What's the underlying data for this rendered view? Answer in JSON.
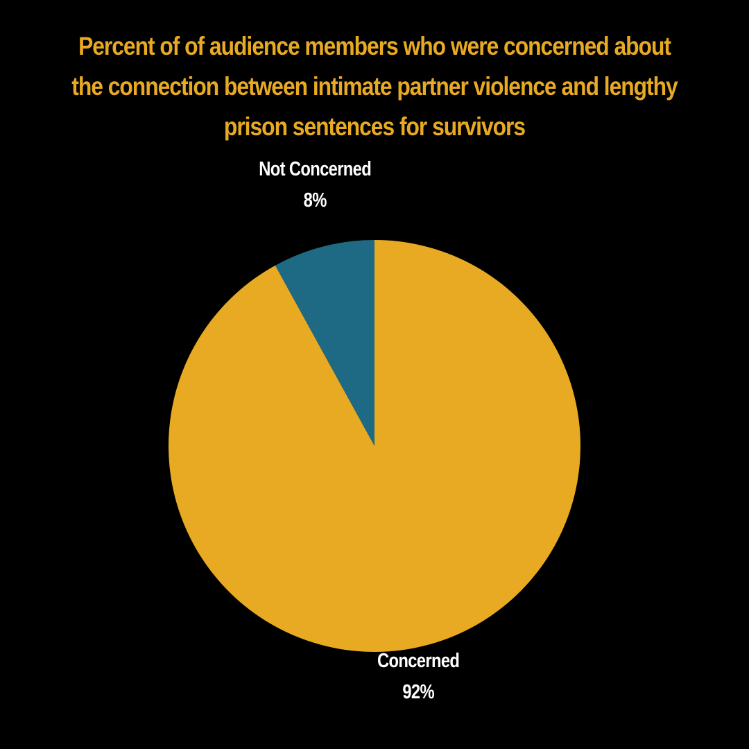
{
  "chart_data": {
    "type": "pie",
    "title": "Percent of of audience members who were concerned about the connection between intimate partner violence and lengthy prison sentences for survivors",
    "slices": [
      {
        "label": "Concerned",
        "value": 92,
        "value_label": "92%",
        "color": "#E8AA22"
      },
      {
        "label": "Not Concerned",
        "value": 8,
        "value_label": "8%",
        "color": "#1E6A84"
      }
    ],
    "start": "12 o'clock",
    "direction": "clockwise",
    "legend": "none",
    "background": "#000000",
    "title_color": "#E8AA22",
    "label_color": "#FFFFFF"
  }
}
